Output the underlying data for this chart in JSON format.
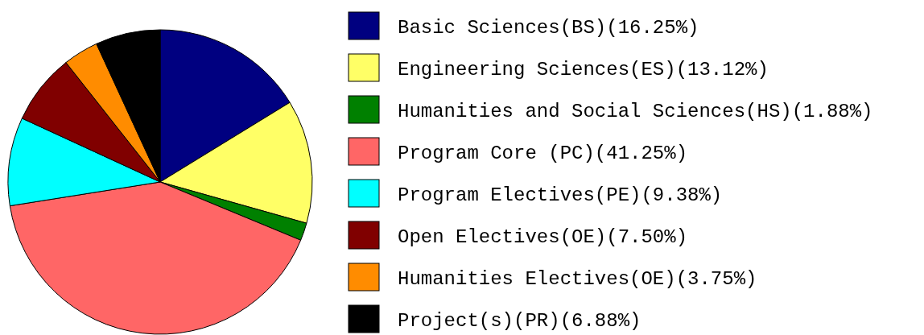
{
  "chart_data": {
    "type": "pie",
    "categories": [
      "Basic Sciences(BS)(16.25%)",
      "Engineering Sciences(ES)(13.12%)",
      "Humanities and Social Sciences(HS)(1.88%)",
      "Program Core (PC)(41.25%)",
      "Program Electives(PE)(9.38%)",
      "Open Electives(OE)(7.50%)",
      "Humanities Electives(OE)(3.75%)",
      "Project(s)(PR)(6.88%)"
    ],
    "values": [
      16.25,
      13.12,
      1.88,
      41.25,
      9.38,
      7.5,
      3.75,
      6.88
    ],
    "colors": [
      "#000080",
      "#ffff66",
      "#008000",
      "#ff6666",
      "#00ffff",
      "#800000",
      "#ff8c00",
      "#000000"
    ],
    "legend": "right"
  }
}
